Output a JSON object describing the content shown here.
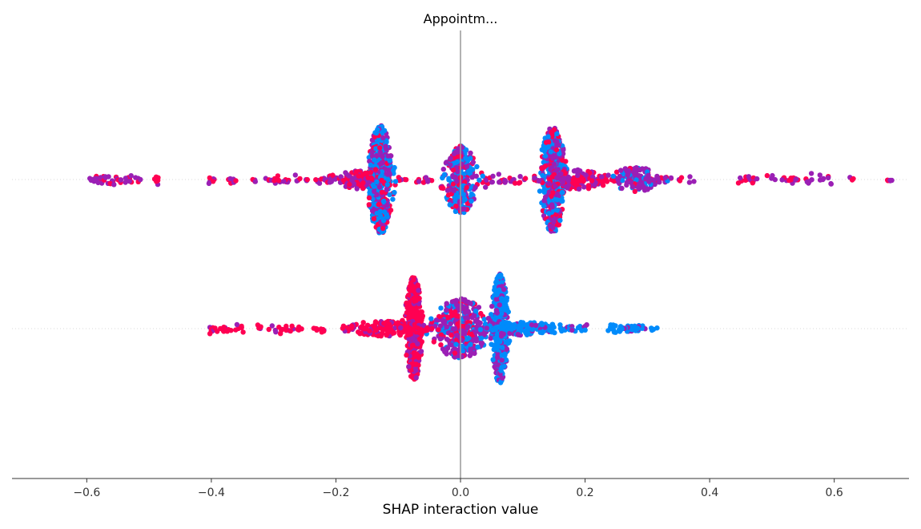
{
  "chart_data": {
    "type": "scatter",
    "subtype": "shap-interaction-beeswarm",
    "title": "Appointm...",
    "xlabel": "SHAP interaction value",
    "ylabel": "",
    "xlim": [
      -0.72,
      0.72
    ],
    "xticks": [
      {
        "value": -0.6,
        "label": "−0.6"
      },
      {
        "value": -0.4,
        "label": "−0.4"
      },
      {
        "value": -0.2,
        "label": "−0.2"
      },
      {
        "value": 0.0,
        "label": "0.0"
      },
      {
        "value": 0.2,
        "label": "0.2"
      },
      {
        "value": 0.4,
        "label": "0.4"
      },
      {
        "value": 0.6,
        "label": "0.6"
      }
    ],
    "zero_line": true,
    "color_scale": {
      "low": "#008bfb",
      "mid": "#9b1fb5",
      "high": "#ff0052"
    },
    "rows": [
      {
        "row": 1,
        "clusters": [
          {
            "x": -0.128,
            "spread": 0.009,
            "height": 1.0,
            "color": "blue-magenta",
            "density": 520
          },
          {
            "x": 0.0,
            "spread": 0.012,
            "height": 0.62,
            "color": "blue-magenta",
            "density": 300
          },
          {
            "x": 0.148,
            "spread": 0.009,
            "height": 0.98,
            "color": "blue-magenta",
            "density": 480
          },
          {
            "x": -0.165,
            "spread": 0.015,
            "height": 0.18,
            "color": "red-magenta",
            "density": 90
          },
          {
            "x": 0.185,
            "spread": 0.025,
            "height": 0.18,
            "color": "red-magenta",
            "density": 120
          },
          {
            "x": 0.28,
            "spread": 0.02,
            "height": 0.22,
            "color": "magenta",
            "density": 120
          }
        ],
        "sparse_x": [
          -0.595,
          -0.585,
          -0.575,
          -0.57,
          -0.56,
          -0.55,
          -0.54,
          -0.53,
          -0.52,
          -0.49,
          -0.485,
          -0.4,
          -0.37,
          -0.36,
          -0.33,
          -0.31,
          -0.3,
          -0.29,
          -0.28,
          -0.26,
          -0.25,
          -0.23,
          -0.22,
          -0.21,
          -0.2,
          -0.19,
          -0.18,
          -0.1,
          -0.09,
          -0.07,
          -0.06,
          -0.05,
          0.04,
          0.05,
          0.06,
          0.07,
          0.08,
          0.09,
          0.1,
          0.12,
          0.21,
          0.22,
          0.23,
          0.24,
          0.25,
          0.3,
          0.31,
          0.32,
          0.33,
          0.35,
          0.37,
          0.45,
          0.46,
          0.47,
          0.5,
          0.52,
          0.53,
          0.54,
          0.56,
          0.58,
          0.59,
          0.63,
          0.69
        ]
      },
      {
        "row": 2,
        "clusters": [
          {
            "x": -0.075,
            "spread": 0.006,
            "height": 0.95,
            "color": "red",
            "density": 420
          },
          {
            "x": 0.0,
            "spread": 0.02,
            "height": 0.55,
            "color": "magenta",
            "density": 360
          },
          {
            "x": 0.063,
            "spread": 0.006,
            "height": 1.0,
            "color": "blue",
            "density": 440
          },
          {
            "x": -0.12,
            "spread": 0.03,
            "height": 0.14,
            "color": "red",
            "density": 140
          },
          {
            "x": 0.1,
            "spread": 0.025,
            "height": 0.12,
            "color": "blue",
            "density": 130
          },
          {
            "x": 0.28,
            "spread": 0.015,
            "height": 0.06,
            "color": "blue",
            "density": 60
          }
        ],
        "sparse_x": [
          -0.4,
          -0.39,
          -0.38,
          -0.37,
          -0.36,
          -0.35,
          -0.32,
          -0.3,
          -0.29,
          -0.28,
          -0.27,
          -0.26,
          -0.23,
          -0.22,
          -0.18,
          -0.17,
          -0.16,
          0.13,
          0.14,
          0.15,
          0.16,
          0.17,
          0.18,
          0.19,
          0.2,
          0.24,
          0.25
        ]
      }
    ]
  }
}
